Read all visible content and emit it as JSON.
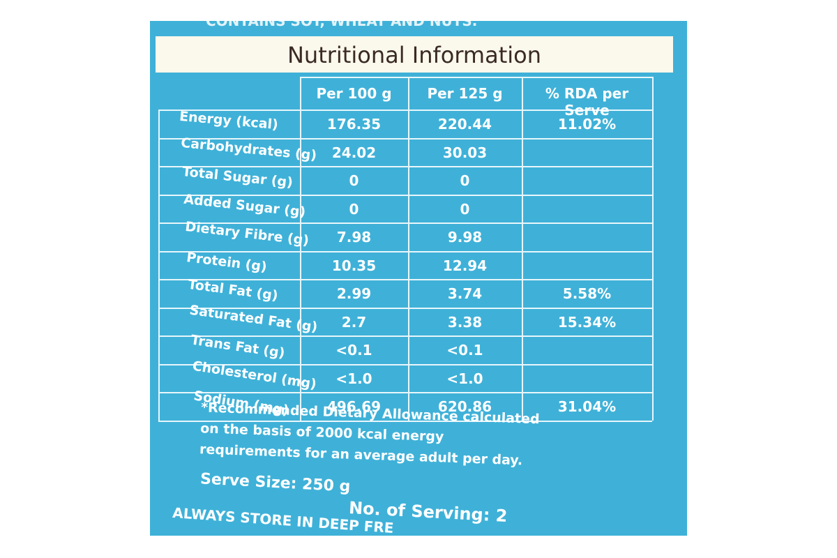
{
  "package_text": {
    "top": "CONTAINS SOY, WHEAT AND NUTS.",
    "bottom": "ALWAYS STORE IN DEEP FRE"
  },
  "header": {
    "title": "Nutritional Information"
  },
  "table": {
    "columns": [
      "Per 100 g",
      "Per 125 g",
      "% RDA per Serve"
    ],
    "rows": [
      [
        "Energy (kcal)",
        "176.35",
        "220.44",
        "11.02%"
      ],
      [
        "Carbohydrates (g)",
        "24.02",
        "30.03",
        null
      ],
      [
        "Total Sugar (g)",
        "0",
        "0",
        null
      ],
      [
        "Added Sugar (g)",
        "0",
        "0",
        null
      ],
      [
        "Dietary Fibre (g)",
        "7.98",
        "9.98",
        null
      ],
      [
        "Protein (g)",
        "10.35",
        "12.94",
        null
      ],
      [
        "Total Fat (g)",
        "2.99",
        "3.74",
        "5.58%"
      ],
      [
        "Saturated Fat (g)",
        "2.7",
        "3.38",
        "15.34%"
      ],
      [
        "Trans Fat (g)",
        "<0.1",
        "<0.1",
        null
      ],
      [
        "Cholesterol (mg)",
        "<1.0",
        "<1.0",
        null
      ],
      [
        "Sodium (mg)",
        "496.69",
        "620.86",
        "31.04%"
      ]
    ]
  },
  "footnote": "*Recommended Dietary Allowance calculated on the basis of 2000 kcal energy requirements for an average adult per day.",
  "serve_size": "Serve Size: 250 g",
  "servings": "No. of Serving: 2"
}
